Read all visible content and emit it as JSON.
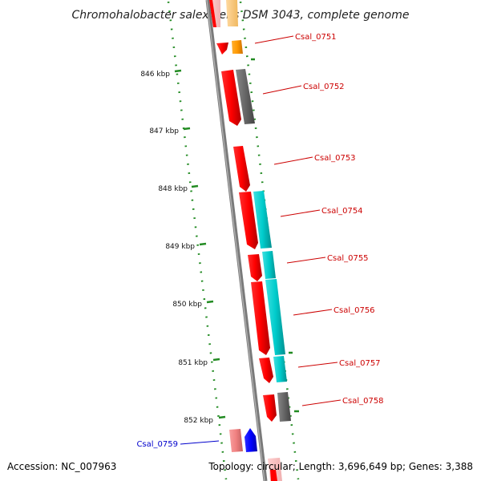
{
  "title": "Chromohalobacter salexigens DSM 3043, complete genome",
  "footer": {
    "accession": "Accession: NC_007963",
    "summary": "Topology: circular; Length: 3,696,649 bp; Genes: 3,388"
  },
  "ticks": [
    "846 kbp",
    "847 kbp",
    "848 kbp",
    "849 kbp",
    "850 kbp",
    "851 kbp",
    "852 kbp"
  ],
  "genes": [
    {
      "label": "Csal_0751",
      "color": "#cc0000"
    },
    {
      "label": "Csal_0752",
      "color": "#cc0000"
    },
    {
      "label": "Csal_0753",
      "color": "#cc0000"
    },
    {
      "label": "Csal_0754",
      "color": "#cc0000"
    },
    {
      "label": "Csal_0755",
      "color": "#cc0000"
    },
    {
      "label": "Csal_0756",
      "color": "#cc0000"
    },
    {
      "label": "Csal_0757",
      "color": "#cc0000"
    },
    {
      "label": "Csal_0758",
      "color": "#cc0000"
    },
    {
      "label": "Csal_0759",
      "color": "#0000cc"
    }
  ],
  "colors": {
    "cds_forward": "#ff0000",
    "cds_reverse": "#0000ff",
    "rna": "#ff9900",
    "cog_cyan": "#00cccc",
    "cog_gray": "#666666",
    "cds_pink": "#f08080",
    "backbone": "#888888",
    "ticks": "#228b22"
  }
}
